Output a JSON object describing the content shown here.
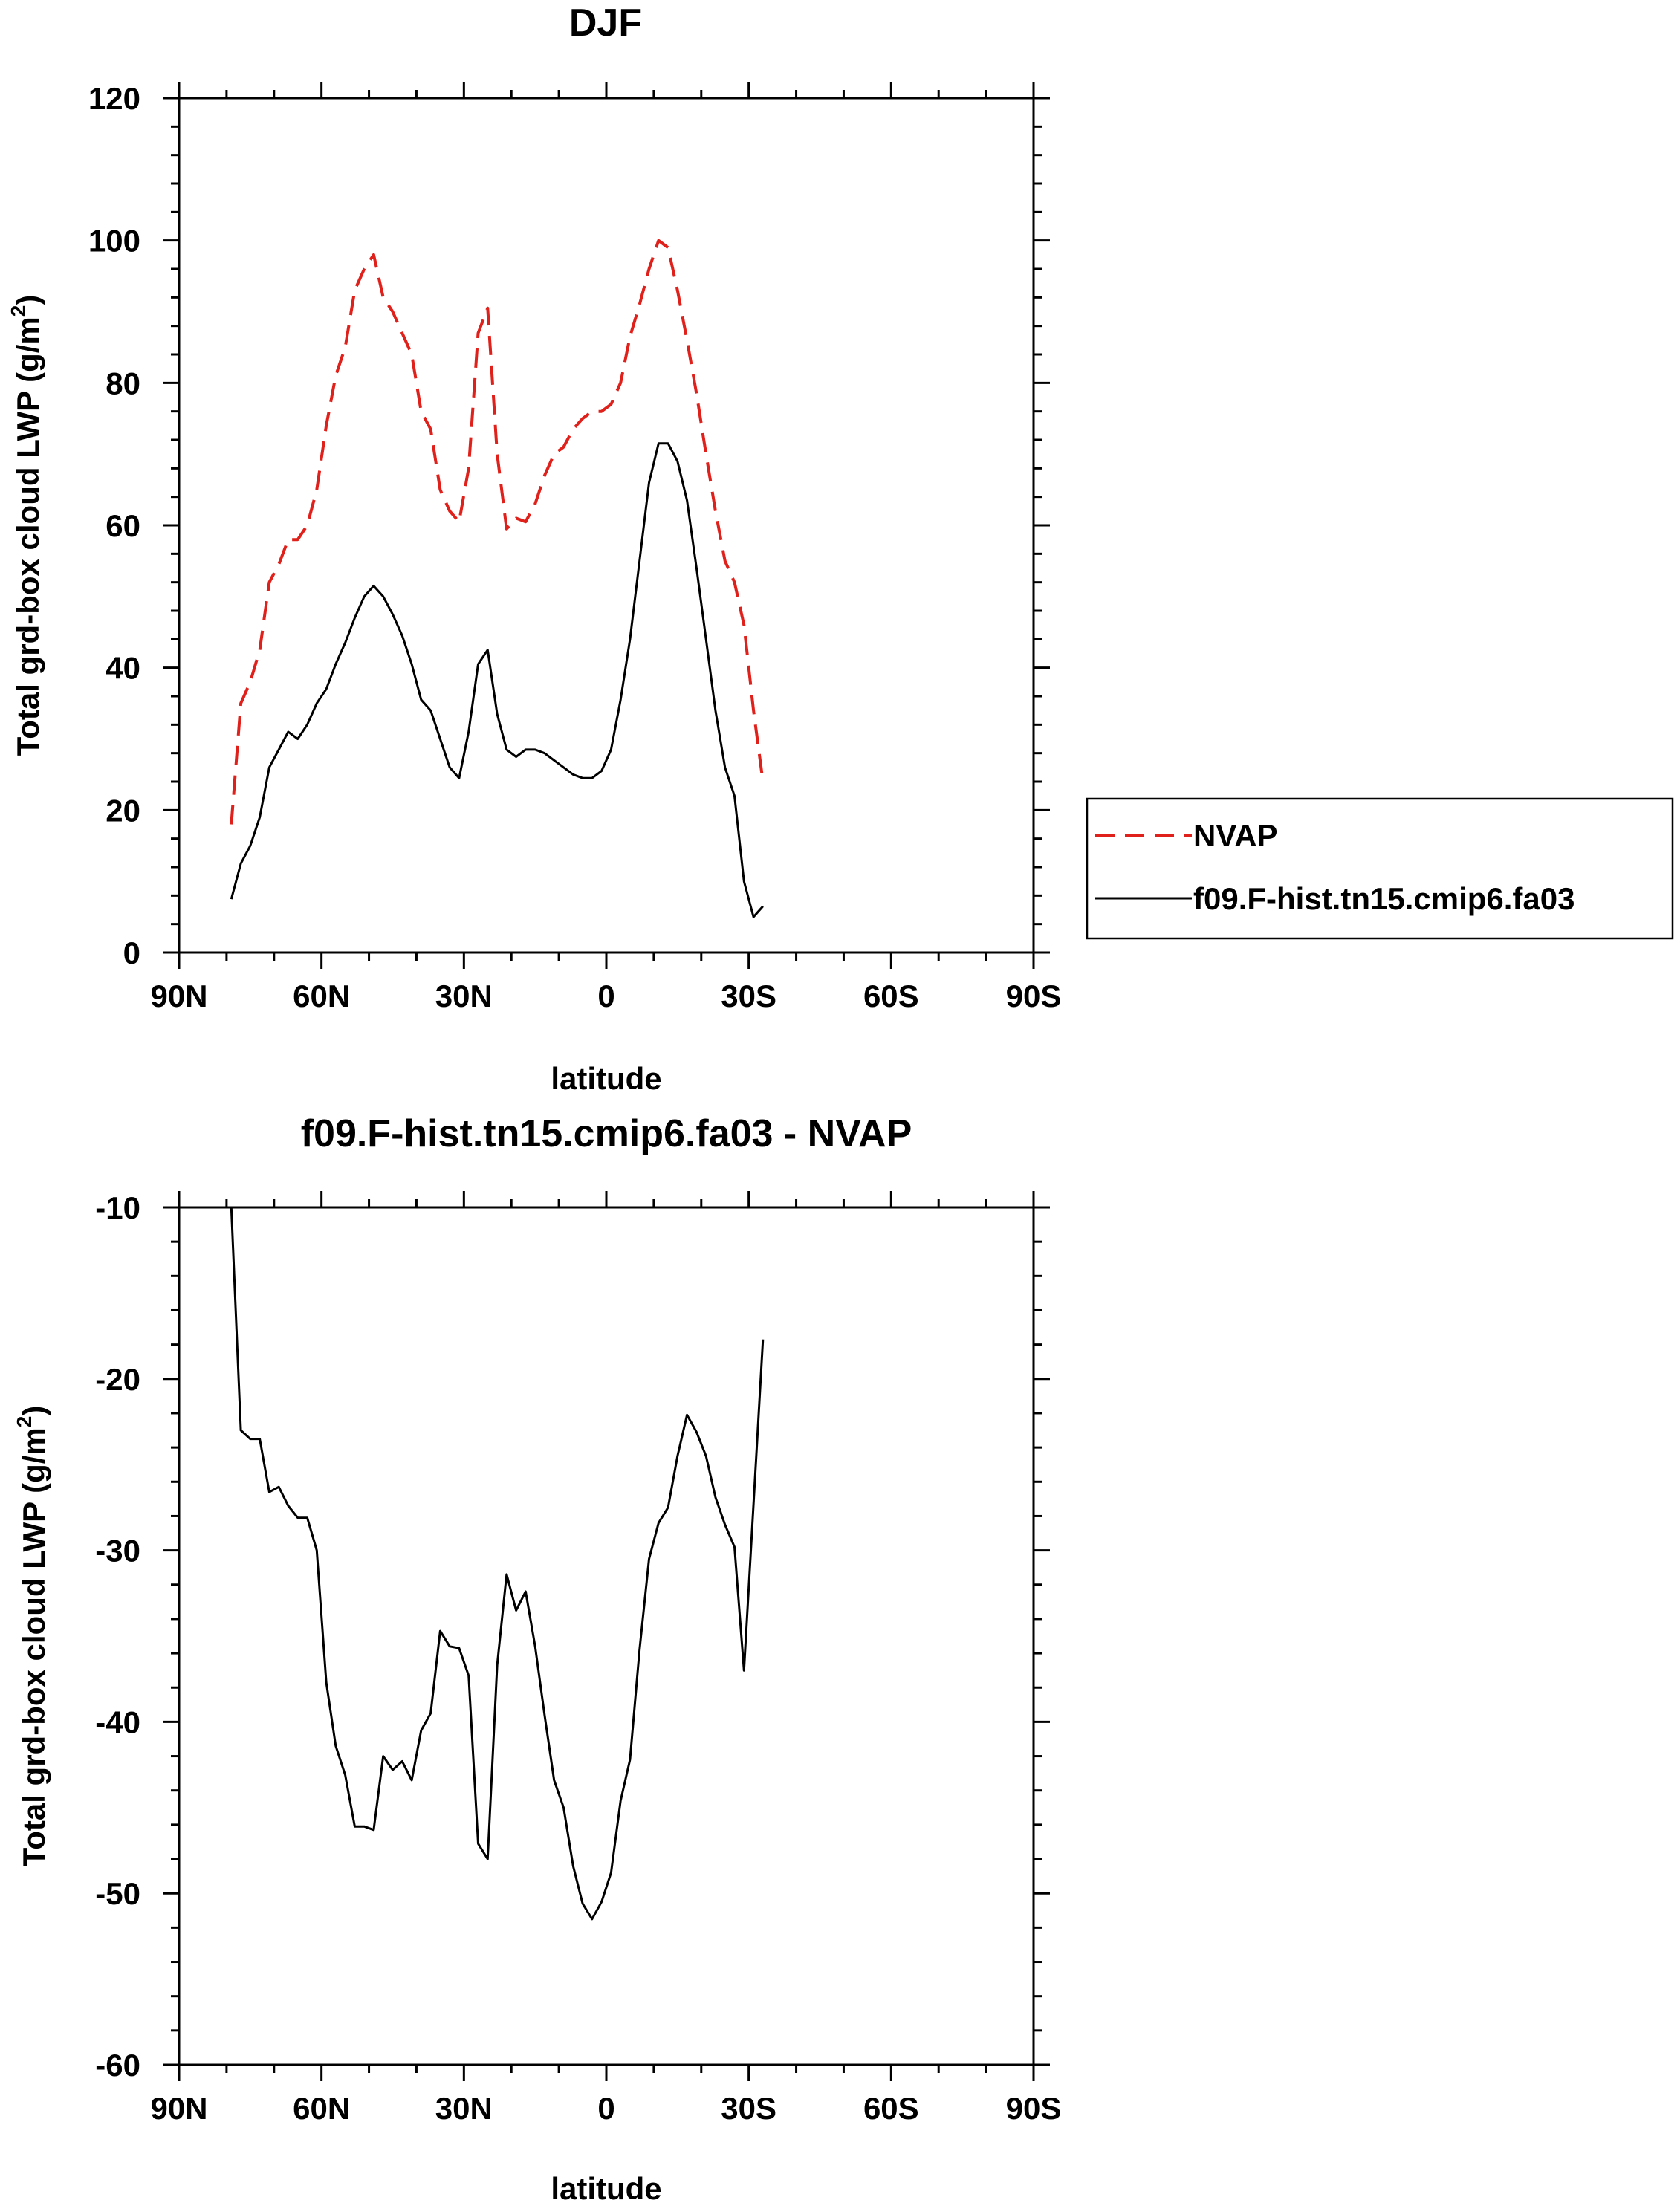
{
  "chart_data": [
    {
      "type": "line",
      "title": "DJF",
      "xlabel": "latitude",
      "ylabel_main": "Total grd-box cloud LWP (g/m",
      "ylabel_sup": "2",
      "ylabel_close": ")",
      "xlim": [
        90,
        -90
      ],
      "ylim": [
        0,
        120
      ],
      "xticks": [
        {
          "value": 90,
          "label": "90N"
        },
        {
          "value": 60,
          "label": "60N"
        },
        {
          "value": 30,
          "label": "30N"
        },
        {
          "value": 0,
          "label": "0"
        },
        {
          "value": -30,
          "label": "30S"
        },
        {
          "value": -60,
          "label": "60S"
        },
        {
          "value": -90,
          "label": "90S"
        }
      ],
      "yticks": [
        {
          "value": 0,
          "label": "0"
        },
        {
          "value": 20,
          "label": "20"
        },
        {
          "value": 40,
          "label": "40"
        },
        {
          "value": 60,
          "label": "60"
        },
        {
          "value": 80,
          "label": "80"
        },
        {
          "value": 100,
          "label": "100"
        },
        {
          "value": 120,
          "label": "120"
        }
      ],
      "legend": {
        "placement": "right",
        "entries": [
          "NVAP",
          "f09.F-hist.tn15.cmip6.fa03"
        ]
      },
      "series": [
        {
          "name": "NVAP",
          "color": "#e0201a",
          "dash": true,
          "points": [
            [
              79,
              18
            ],
            [
              77,
              35
            ],
            [
              75,
              38
            ],
            [
              73,
              42.5
            ],
            [
              71,
              52
            ],
            [
              69,
              54.5
            ],
            [
              67,
              58
            ],
            [
              65,
              58
            ],
            [
              63,
              60
            ],
            [
              61,
              65
            ],
            [
              59,
              74
            ],
            [
              57,
              81
            ],
            [
              55,
              85
            ],
            [
              53,
              93
            ],
            [
              51,
              96
            ],
            [
              49,
              98
            ],
            [
              47,
              92
            ],
            [
              45,
              90
            ],
            [
              43,
              87
            ],
            [
              41,
              84
            ],
            [
              39,
              76
            ],
            [
              37,
              73.5
            ],
            [
              35,
              65
            ],
            [
              33,
              62
            ],
            [
              31,
              60.5
            ],
            [
              29,
              68
            ],
            [
              27,
              87
            ],
            [
              25,
              90.5
            ],
            [
              23,
              70
            ],
            [
              21,
              59.5
            ],
            [
              19,
              61
            ],
            [
              17,
              60.5
            ],
            [
              15,
              63
            ],
            [
              13,
              67
            ],
            [
              11,
              70
            ],
            [
              9,
              71
            ],
            [
              7,
              73.5
            ],
            [
              5,
              75
            ],
            [
              3,
              76
            ],
            [
              1,
              76
            ],
            [
              -1,
              77
            ],
            [
              -3,
              80
            ],
            [
              -5,
              86.5
            ],
            [
              -7,
              91
            ],
            [
              -9,
              96
            ],
            [
              -11,
              100
            ],
            [
              -13,
              99
            ],
            [
              -15,
              93
            ],
            [
              -17,
              86
            ],
            [
              -19,
              78.5
            ],
            [
              -21,
              70
            ],
            [
              -23,
              62
            ],
            [
              -25,
              55
            ],
            [
              -27,
              52
            ],
            [
              -29,
              46
            ],
            [
              -31,
              34
            ],
            [
              -33,
              24
            ]
          ]
        },
        {
          "name": "f09.F-hist.tn15.cmip6.fa03",
          "color": "#000000",
          "dash": false,
          "points": [
            [
              79,
              7.5
            ],
            [
              77,
              12.5
            ],
            [
              75,
              15
            ],
            [
              73,
              19
            ],
            [
              71,
              26
            ],
            [
              69,
              28.5
            ],
            [
              67,
              31
            ],
            [
              65,
              30
            ],
            [
              63,
              32
            ],
            [
              61,
              35
            ],
            [
              59,
              37
            ],
            [
              57,
              40.5
            ],
            [
              55,
              43.5
            ],
            [
              53,
              47
            ],
            [
              51,
              50
            ],
            [
              49,
              51.5
            ],
            [
              47,
              50
            ],
            [
              45,
              47.5
            ],
            [
              43,
              44.5
            ],
            [
              41,
              40.5
            ],
            [
              39,
              35.5
            ],
            [
              37,
              34
            ],
            [
              35,
              30
            ],
            [
              33,
              26
            ],
            [
              31,
              24.5
            ],
            [
              29,
              31
            ],
            [
              27,
              40.5
            ],
            [
              25,
              42.5
            ],
            [
              23,
              33.5
            ],
            [
              21,
              28.5
            ],
            [
              19,
              27.5
            ],
            [
              17,
              28.5
            ],
            [
              15,
              28.5
            ],
            [
              13,
              28
            ],
            [
              11,
              27
            ],
            [
              9,
              26
            ],
            [
              7,
              25
            ],
            [
              5,
              24.5
            ],
            [
              3,
              24.5
            ],
            [
              1,
              25.5
            ],
            [
              -1,
              28.5
            ],
            [
              -3,
              35.5
            ],
            [
              -5,
              44
            ],
            [
              -7,
              55
            ],
            [
              -9,
              66
            ],
            [
              -11,
              71.5
            ],
            [
              -13,
              71.5
            ],
            [
              -15,
              69
            ],
            [
              -17,
              63.5
            ],
            [
              -19,
              54
            ],
            [
              -21,
              44
            ],
            [
              -23,
              34
            ],
            [
              -25,
              26
            ],
            [
              -27,
              22
            ],
            [
              -29,
              10
            ],
            [
              -31,
              5
            ],
            [
              -33,
              6.5
            ]
          ]
        }
      ]
    },
    {
      "type": "line",
      "title": "f09.F-hist.tn15.cmip6.fa03 - NVAP",
      "xlabel": "latitude",
      "ylabel_main": "Total grd-box cloud LWP (g/m",
      "ylabel_sup": "2",
      "ylabel_close": ")",
      "xlim": [
        90,
        -90
      ],
      "ylim": [
        -60,
        -10
      ],
      "xticks": [
        {
          "value": 90,
          "label": "90N"
        },
        {
          "value": 60,
          "label": "60N"
        },
        {
          "value": 30,
          "label": "30N"
        },
        {
          "value": 0,
          "label": "0"
        },
        {
          "value": -30,
          "label": "30S"
        },
        {
          "value": -60,
          "label": "60S"
        },
        {
          "value": -90,
          "label": "90S"
        }
      ],
      "yticks": [
        {
          "value": -60,
          "label": "-60"
        },
        {
          "value": -50,
          "label": "-50"
        },
        {
          "value": -40,
          "label": "-40"
        },
        {
          "value": -30,
          "label": "-30"
        },
        {
          "value": -20,
          "label": "-20"
        },
        {
          "value": -10,
          "label": "-10"
        }
      ],
      "series": [
        {
          "color": "#000000",
          "dash": false,
          "points": [
            [
              79,
              -10
            ],
            [
              77,
              -23
            ],
            [
              75,
              -23.5
            ],
            [
              73,
              -23.5
            ],
            [
              71,
              -26.6
            ],
            [
              69,
              -26.3
            ],
            [
              67,
              -27.4
            ],
            [
              65,
              -28.1
            ],
            [
              63,
              -28.1
            ],
            [
              61,
              -30
            ],
            [
              59,
              -37.7
            ],
            [
              57,
              -41.4
            ],
            [
              55,
              -43.1
            ],
            [
              53,
              -46.1
            ],
            [
              51,
              -46.1
            ],
            [
              49,
              -46.3
            ],
            [
              47,
              -42
            ],
            [
              45,
              -42.8
            ],
            [
              43,
              -42.3
            ],
            [
              41,
              -43.4
            ],
            [
              39,
              -40.5
            ],
            [
              37,
              -39.5
            ],
            [
              35,
              -34.7
            ],
            [
              33,
              -35.6
            ],
            [
              31,
              -35.7
            ],
            [
              29,
              -37.3
            ],
            [
              27,
              -47.1
            ],
            [
              25,
              -48
            ],
            [
              23,
              -36.7
            ],
            [
              21,
              -31.4
            ],
            [
              19,
              -33.5
            ],
            [
              17,
              -32.4
            ],
            [
              15,
              -35.6
            ],
            [
              13,
              -39.6
            ],
            [
              11,
              -43.4
            ],
            [
              9,
              -45
            ],
            [
              7,
              -48.4
            ],
            [
              5,
              -50.6
            ],
            [
              3,
              -51.5
            ],
            [
              1,
              -50.5
            ],
            [
              -1,
              -48.8
            ],
            [
              -3,
              -44.6
            ],
            [
              -5,
              -42.2
            ],
            [
              -7,
              -35.8
            ],
            [
              -9,
              -30.5
            ],
            [
              -11,
              -28.4
            ],
            [
              -13,
              -27.5
            ],
            [
              -15,
              -24.5
            ],
            [
              -17,
              -22.1
            ],
            [
              -19,
              -23.1
            ],
            [
              -21,
              -24.5
            ],
            [
              -23,
              -26.9
            ],
            [
              -25,
              -28.5
            ],
            [
              -27,
              -29.8
            ],
            [
              -29,
              -37
            ],
            [
              -33,
              -17.7
            ]
          ]
        }
      ]
    }
  ]
}
